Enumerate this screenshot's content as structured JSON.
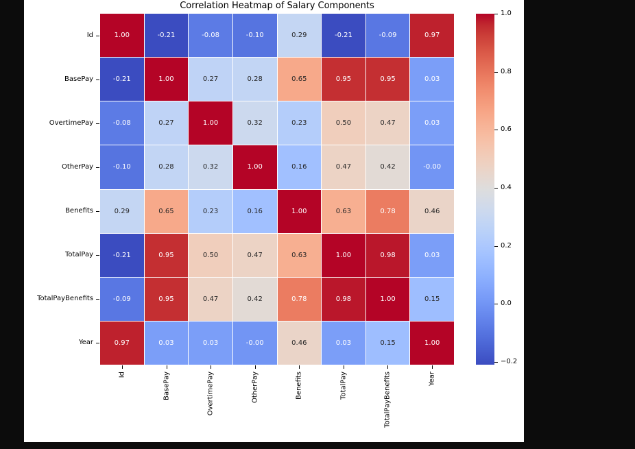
{
  "figure": {
    "background": "#ffffff",
    "page_background": "#0c0c0c"
  },
  "chart_data": {
    "type": "heatmap",
    "title": "Correlation Heatmap of Salary Components",
    "categories": [
      "Id",
      "BasePay",
      "OvertimePay",
      "OtherPay",
      "Benefits",
      "TotalPay",
      "TotalPayBenefits",
      "Year"
    ],
    "matrix": [
      [
        "1.00",
        "-0.21",
        "-0.08",
        "-0.10",
        "0.29",
        "-0.21",
        "-0.09",
        "0.97"
      ],
      [
        "-0.21",
        "1.00",
        "0.27",
        "0.28",
        "0.65",
        "0.95",
        "0.95",
        "0.03"
      ],
      [
        "-0.08",
        "0.27",
        "1.00",
        "0.32",
        "0.23",
        "0.50",
        "0.47",
        "0.03"
      ],
      [
        "-0.10",
        "0.28",
        "0.32",
        "1.00",
        "0.16",
        "0.47",
        "0.42",
        "-0.00"
      ],
      [
        "0.29",
        "0.65",
        "0.23",
        "0.16",
        "1.00",
        "0.63",
        "0.78",
        "0.46"
      ],
      [
        "-0.21",
        "0.95",
        "0.50",
        "0.47",
        "0.63",
        "1.00",
        "0.98",
        "0.03"
      ],
      [
        "-0.09",
        "0.95",
        "0.47",
        "0.42",
        "0.78",
        "0.98",
        "1.00",
        "0.15"
      ],
      [
        "0.97",
        "0.03",
        "0.03",
        "-0.00",
        "0.46",
        "0.03",
        "0.15",
        "1.00"
      ]
    ],
    "colormap": "coolwarm",
    "vmin": -0.21,
    "vmax": 1.0,
    "x_tick_rotation": 90,
    "legend_position": "right-colorbar",
    "grid": false,
    "colorbar_ticks": [
      {
        "label": "1.0",
        "value": 1.0
      },
      {
        "label": "0.8",
        "value": 0.8
      },
      {
        "label": "0.6",
        "value": 0.6
      },
      {
        "label": "0.4",
        "value": 0.4
      },
      {
        "label": "0.2",
        "value": 0.2
      },
      {
        "label": "0.0",
        "value": 0.0
      },
      {
        "label": "−0.2",
        "value": -0.2
      }
    ],
    "colors": {
      "cmap_min": "#3b4cc0",
      "cmap_mid": "#dddddd",
      "cmap_max": "#b40426",
      "annotation_dark": "#262626",
      "annotation_light": "#ffffff",
      "axis_text": "#000000"
    }
  }
}
